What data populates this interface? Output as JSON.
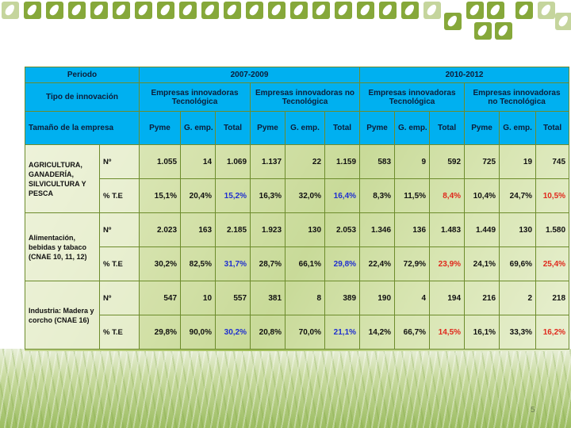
{
  "page_number": "5",
  "header": {
    "periodo": "Periodo",
    "tipo": "Tipo de innovación",
    "tamano": "Tamaño de la empresa",
    "periods": [
      "2007-2009",
      "2010-2012"
    ],
    "groups": [
      "Empresas innovadoras Tecnológica",
      "Empresas innovadoras no Tecnológica",
      "Empresas innovadoras Tecnológica",
      "Empresas innovadoras no Tecnológica"
    ],
    "cols": [
      "Pyme",
      "G. emp.",
      "Total",
      "Pyme",
      "G. emp.",
      "Total",
      "Pyme",
      "G. emp.",
      "Total",
      "Pyme",
      "G. emp.",
      "Total"
    ]
  },
  "rows": [
    {
      "sector": "AGRICULTURA, GANADERÍA, SILVICULTURA Y PESCA",
      "n_label": "Nº",
      "n": [
        "1.055",
        "14",
        "1.069",
        "1.137",
        "22",
        "1.159",
        "583",
        "9",
        "592",
        "725",
        "19",
        "745"
      ],
      "te_label": "% T.E",
      "te": [
        "15,1%",
        "20,4%",
        "15,2%",
        "16,3%",
        "32,0%",
        "16,4%",
        "8,3%",
        "11,5%",
        "8,4%",
        "10,4%",
        "24,7%",
        "10,5%"
      ]
    },
    {
      "sector": "Alimentación, bebidas y tabaco (CNAE 10, 11, 12)",
      "n_label": "Nº",
      "n": [
        "2.023",
        "163",
        "2.185",
        "1.923",
        "130",
        "2.053",
        "1.346",
        "136",
        "1.483",
        "1.449",
        "130",
        "1.580"
      ],
      "te_label": "% T.E",
      "te": [
        "30,2%",
        "82,5%",
        "31,7%",
        "28,7%",
        "66,1%",
        "29,8%",
        "22,4%",
        "72,9%",
        "23,9%",
        "24,1%",
        "69,6%",
        "25,4%"
      ]
    },
    {
      "sector": "Industria: Madera y corcho (CNAE 16)",
      "n_label": "Nº",
      "n": [
        "547",
        "10",
        "557",
        "381",
        "8",
        "389",
        "190",
        "4",
        "194",
        "216",
        "2",
        "218"
      ],
      "te_label": "% T.E",
      "te": [
        "29,8%",
        "90,0%",
        "30,2%",
        "20,8%",
        "70,0%",
        "21,1%",
        "14,2%",
        "66,7%",
        "14,5%",
        "16,1%",
        "33,3%",
        "16,2%"
      ]
    }
  ],
  "colors": {
    "header_bg": "#00b0f0",
    "total_2007": "#1f2fd0",
    "total_2010": "#e0281c",
    "leaf": "#86a83a"
  }
}
